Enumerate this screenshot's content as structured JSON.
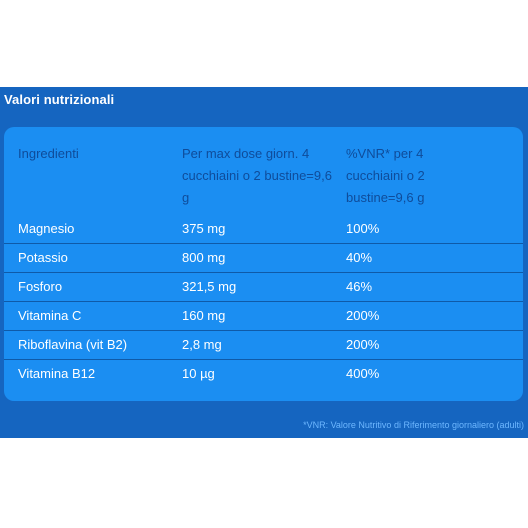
{
  "title": "Valori nutrizionali",
  "table": {
    "headers": [
      "Ingredienti",
      "Per max dose giorn. 4 cucchiaini o 2 bustine=9,6 g",
      "%VNR* per 4 cucchiaini o 2 bustine=9,6 g"
    ],
    "rows": [
      [
        "Magnesio",
        "375 mg",
        "100%"
      ],
      [
        "Potassio",
        "800 mg",
        "40%"
      ],
      [
        "Fosforo",
        "321,5 mg",
        "46%"
      ],
      [
        "Vitamina C",
        "160 mg",
        "200%"
      ],
      [
        "Riboflavina (vit B2)",
        "2,8 mg",
        "200%"
      ],
      [
        "Vitamina B12",
        "10 µg",
        "400%"
      ]
    ]
  },
  "footnote": "*VNR: Valore Nutritivo di Riferimento giornaliero (adulti)",
  "colors": {
    "panel": "#1565c0",
    "card": "#1b8ef2",
    "header_text": "#0f4c9a",
    "cell_text": "#ffffff",
    "footnote": "#6db7ff"
  }
}
